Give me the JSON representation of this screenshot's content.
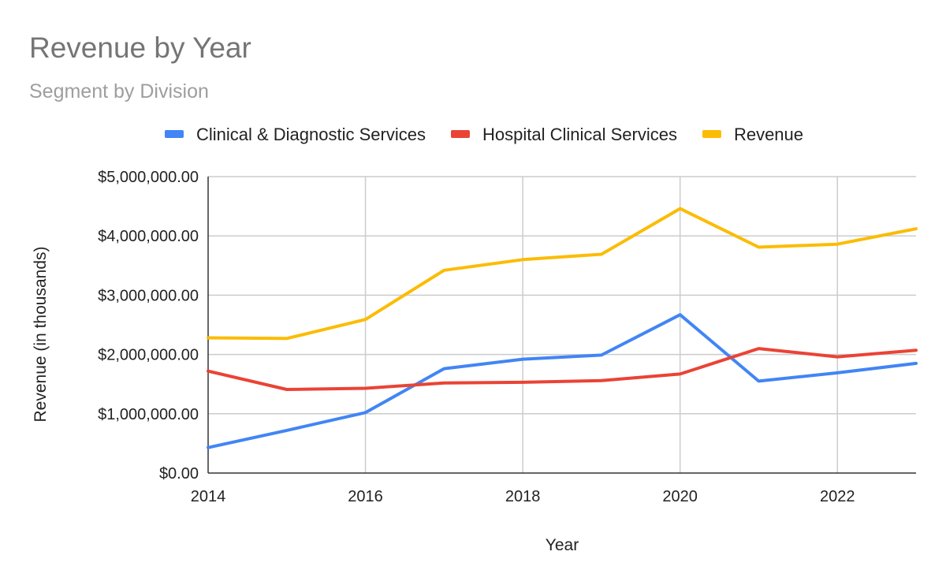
{
  "chart_data": {
    "type": "line",
    "title": "Revenue by Year",
    "subtitle": "Segment by Division",
    "xlabel": "Year",
    "ylabel": "Revenue (in thousands)",
    "x": [
      2014,
      2015,
      2016,
      2017,
      2018,
      2019,
      2020,
      2021,
      2022,
      2023
    ],
    "xlim": [
      2014,
      2023
    ],
    "ylim": [
      0,
      5000000
    ],
    "x_ticks": [
      2014,
      2016,
      2018,
      2020,
      2022
    ],
    "x_tick_labels": [
      "2014",
      "2016",
      "2018",
      "2020",
      "2022"
    ],
    "y_ticks": [
      0,
      1000000,
      2000000,
      3000000,
      4000000,
      5000000
    ],
    "y_tick_labels": [
      "$0.00",
      "$1,000,000.00",
      "$2,000,000.00",
      "$3,000,000.00",
      "$4,000,000.00",
      "$5,000,000.00"
    ],
    "grid": true,
    "legend_position": "top",
    "series": [
      {
        "name": "Clinical & Diagnostic Services",
        "color": "#4285f4",
        "values": [
          430000,
          720000,
          1020000,
          1760000,
          1920000,
          1990000,
          2670000,
          1550000,
          1690000,
          1850000
        ]
      },
      {
        "name": "Hospital Clinical Services",
        "color": "#ea4335",
        "values": [
          1720000,
          1410000,
          1430000,
          1520000,
          1530000,
          1560000,
          1670000,
          2100000,
          1960000,
          2070000
        ]
      },
      {
        "name": "Revenue",
        "color": "#fbbc04",
        "values": [
          2280000,
          2270000,
          2590000,
          3420000,
          3600000,
          3690000,
          4460000,
          3810000,
          3860000,
          4120000
        ]
      }
    ]
  }
}
